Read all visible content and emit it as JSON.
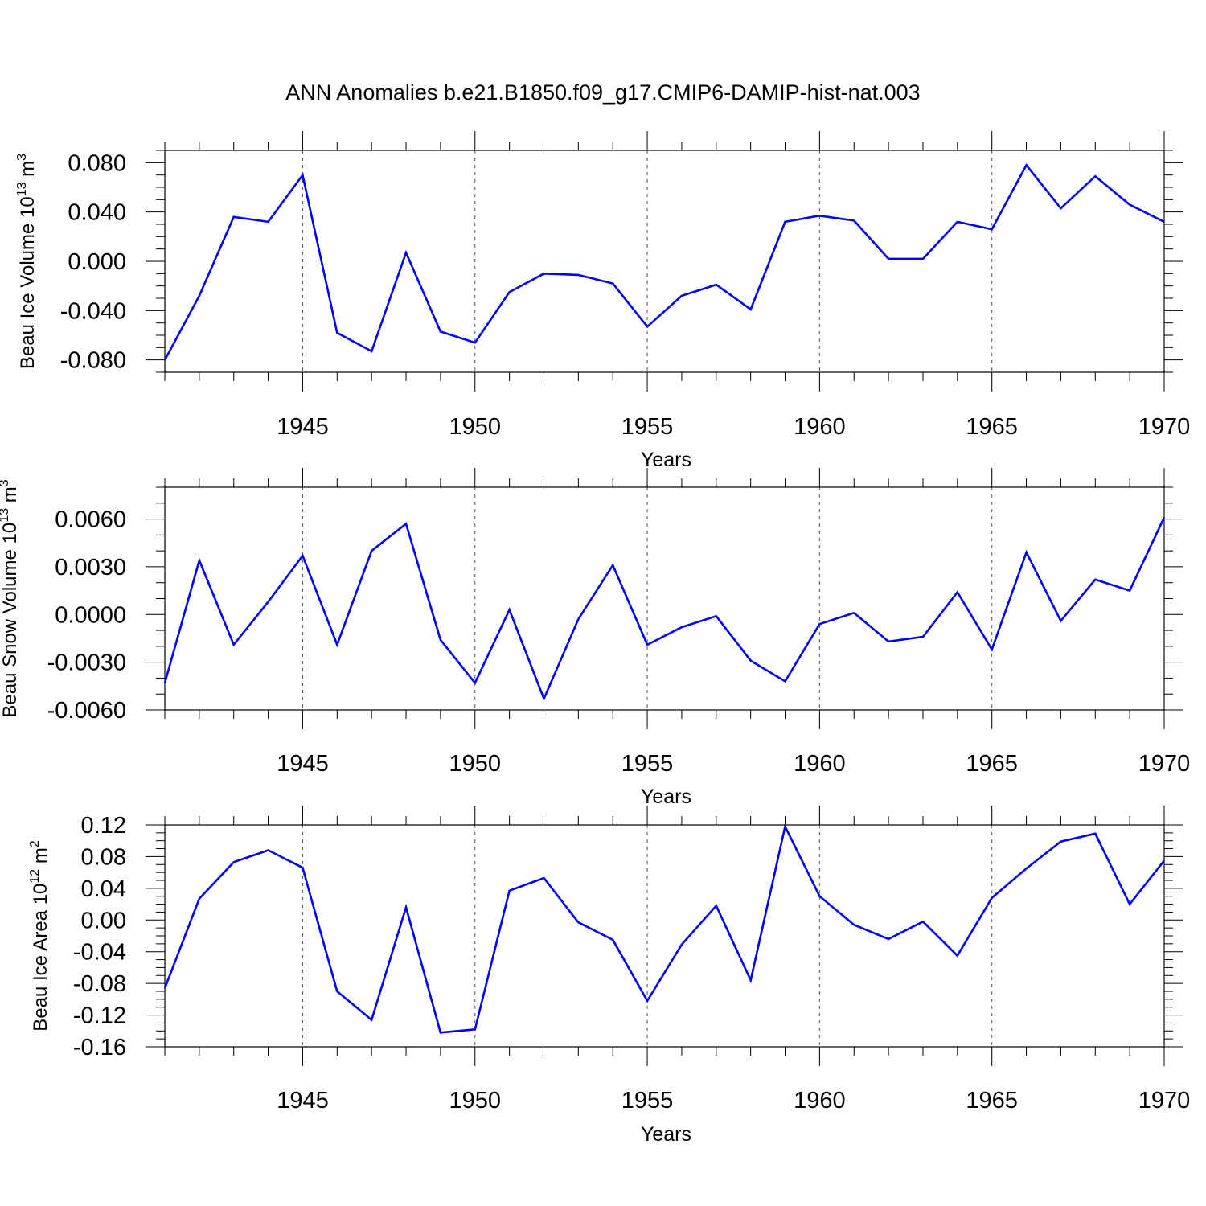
{
  "title": "ANN Anomalies b.e21.B1850.f09_g17.CMIP6-DAMIP-hist-nat.003",
  "colors": {
    "line": "#0000ff",
    "axis": "#000000"
  },
  "chart_data": [
    {
      "type": "line",
      "ylabel_prefix": "Beau Ice Volume 10",
      "ylabel_exp": "13",
      "ylabel_unit": " m",
      "ylabel_unit_exp": "3",
      "xlabel": "Years",
      "xlim": [
        1941,
        1970
      ],
      "ylim": [
        -0.09,
        0.09
      ],
      "xticks": [
        1945,
        1950,
        1955,
        1960,
        1965,
        1970
      ],
      "xtick_labels": [
        "1945",
        "1950",
        "1955",
        "1960",
        "1965",
        "1970"
      ],
      "yticks": [
        -0.08,
        -0.04,
        0.0,
        0.04,
        0.08
      ],
      "ytick_labels": [
        "-0.080",
        "-0.040",
        "0.000",
        "0.040",
        "0.080"
      ],
      "minor_ystep": 0.01,
      "x": [
        1941,
        1942,
        1943,
        1944,
        1945,
        1946,
        1947,
        1948,
        1949,
        1950,
        1951,
        1952,
        1953,
        1954,
        1955,
        1956,
        1957,
        1958,
        1959,
        1960,
        1961,
        1962,
        1963,
        1964,
        1965,
        1966,
        1967,
        1968,
        1969,
        1970
      ],
      "values": [
        -0.08,
        -0.028,
        0.036,
        0.032,
        0.07,
        -0.058,
        -0.073,
        0.007,
        -0.057,
        -0.066,
        -0.025,
        -0.01,
        -0.011,
        -0.018,
        -0.053,
        -0.028,
        -0.019,
        -0.039,
        0.032,
        0.037,
        0.033,
        0.002,
        0.002,
        0.032,
        0.026,
        0.078,
        0.043,
        0.069,
        0.046,
        0.032
      ]
    },
    {
      "type": "line",
      "ylabel_prefix": "Beau Snow Volume 10",
      "ylabel_exp": "13",
      "ylabel_unit": " m",
      "ylabel_unit_exp": "3",
      "xlabel": "Years",
      "xlim": [
        1941,
        1970
      ],
      "ylim": [
        -0.006,
        0.008
      ],
      "xticks": [
        1945,
        1950,
        1955,
        1960,
        1965,
        1970
      ],
      "xtick_labels": [
        "1945",
        "1950",
        "1955",
        "1960",
        "1965",
        "1970"
      ],
      "yticks": [
        -0.006,
        -0.003,
        0.0,
        0.003,
        0.006
      ],
      "ytick_labels": [
        "-0.0060",
        "-0.0030",
        "0.0000",
        "0.0030",
        "0.0060"
      ],
      "minor_ystep": 0.001,
      "x": [
        1941,
        1942,
        1943,
        1944,
        1945,
        1946,
        1947,
        1948,
        1949,
        1950,
        1951,
        1952,
        1953,
        1954,
        1955,
        1956,
        1957,
        1958,
        1959,
        1960,
        1961,
        1962,
        1963,
        1964,
        1965,
        1966,
        1967,
        1968,
        1969,
        1970
      ],
      "values": [
        -0.0043,
        0.0034,
        -0.0019,
        0.0008,
        0.0037,
        -0.0019,
        0.004,
        0.0057,
        -0.0016,
        -0.0043,
        0.0003,
        -0.0053,
        -0.0003,
        0.0031,
        -0.0019,
        -0.0008,
        -0.0001,
        -0.0029,
        -0.0042,
        -0.0006,
        0.0001,
        -0.0017,
        -0.0014,
        0.0014,
        -0.0022,
        0.0039,
        -0.0004,
        0.0022,
        0.0015,
        0.0061
      ]
    },
    {
      "type": "line",
      "ylabel_prefix": "Beau Ice Area 10",
      "ylabel_exp": "12",
      "ylabel_unit": " m",
      "ylabel_unit_exp": "2",
      "xlabel": "Years",
      "xlim": [
        1941,
        1970
      ],
      "ylim": [
        -0.16,
        0.12
      ],
      "xticks": [
        1945,
        1950,
        1955,
        1960,
        1965,
        1970
      ],
      "xtick_labels": [
        "1945",
        "1950",
        "1955",
        "1960",
        "1965",
        "1970"
      ],
      "yticks": [
        -0.16,
        -0.12,
        -0.08,
        -0.04,
        0.0,
        0.04,
        0.08,
        0.12
      ],
      "ytick_labels": [
        "-0.16",
        "-0.12",
        "-0.08",
        "-0.04",
        "0.00",
        "0.04",
        "0.08",
        "0.12"
      ],
      "minor_ystep": 0.01,
      "x": [
        1941,
        1942,
        1943,
        1944,
        1945,
        1946,
        1947,
        1948,
        1949,
        1950,
        1951,
        1952,
        1953,
        1954,
        1955,
        1956,
        1957,
        1958,
        1959,
        1960,
        1961,
        1962,
        1963,
        1964,
        1965,
        1966,
        1967,
        1968,
        1969,
        1970
      ],
      "values": [
        -0.086,
        0.027,
        0.073,
        0.088,
        0.066,
        -0.09,
        -0.126,
        0.016,
        -0.142,
        -0.138,
        0.037,
        0.053,
        -0.003,
        -0.025,
        -0.102,
        -0.031,
        0.018,
        -0.076,
        0.118,
        0.03,
        -0.006,
        -0.024,
        -0.002,
        -0.045,
        0.028,
        0.065,
        0.099,
        0.109,
        0.02,
        0.075
      ]
    }
  ]
}
